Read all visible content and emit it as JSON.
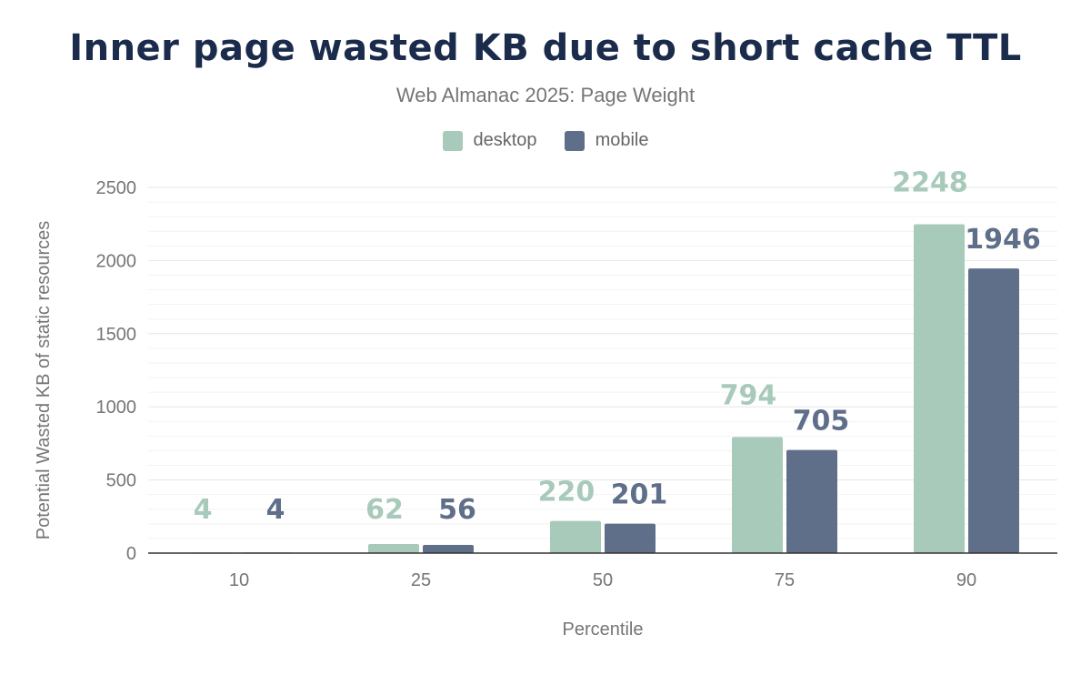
{
  "chart_data": {
    "type": "bar",
    "title": "Inner page wasted KB due to short cache TTL",
    "subtitle": "Web Almanac 2025: Page Weight",
    "xlabel": "Percentile",
    "ylabel": "Potential Wasted KB of static resources",
    "categories": [
      "10",
      "25",
      "50",
      "75",
      "90"
    ],
    "series": [
      {
        "name": "desktop",
        "color": "#a8cabb",
        "values": [
          4,
          62,
          220,
          794,
          2248
        ]
      },
      {
        "name": "mobile",
        "color": "#5f6f8a",
        "values": [
          4,
          56,
          201,
          705,
          1946
        ]
      }
    ],
    "ylim": [
      0,
      2500
    ],
    "yticks": [
      "0",
      "500",
      "1000",
      "1500",
      "2000",
      "2500"
    ],
    "grid": true,
    "legend": "top-center"
  }
}
